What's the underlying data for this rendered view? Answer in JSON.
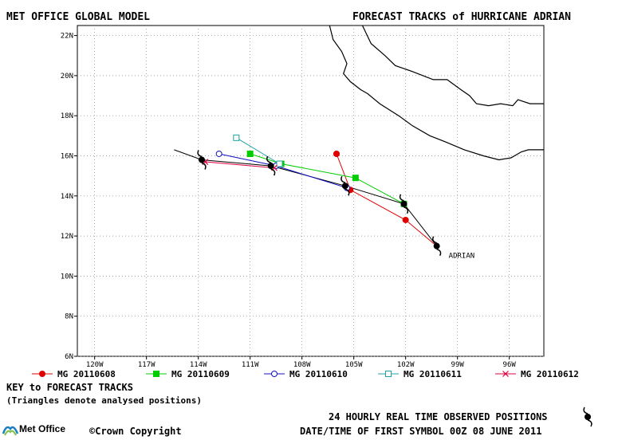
{
  "header": {
    "title_left": "MET OFFICE GLOBAL MODEL",
    "title_right": "FORECAST TRACKS of HURRICANE ADRIAN"
  },
  "map": {
    "lon_range": [
      -121,
      -94
    ],
    "lat_range": [
      6,
      22.5
    ],
    "x_ticks": [
      "120W",
      "117W",
      "114W",
      "111W",
      "108W",
      "105W",
      "102W",
      "99W",
      "96W"
    ],
    "y_ticks": [
      "6N",
      "8N",
      "10N",
      "12N",
      "14N",
      "16N",
      "18N",
      "20N",
      "22N"
    ],
    "gridlines": "dotted",
    "storm_label": "ADRIAN",
    "coastline": [
      [
        -106.4,
        22.5
      ],
      [
        -106.2,
        21.8
      ],
      [
        -105.7,
        21.2
      ],
      [
        -105.4,
        20.6
      ],
      [
        -105.6,
        20.1
      ],
      [
        -105.2,
        19.7
      ],
      [
        -104.6,
        19.3
      ],
      [
        -104.2,
        19.1
      ],
      [
        -103.5,
        18.6
      ],
      [
        -102.4,
        18.0
      ],
      [
        -101.6,
        17.5
      ],
      [
        -100.6,
        17.0
      ],
      [
        -99.7,
        16.7
      ],
      [
        -98.6,
        16.3
      ],
      [
        -97.5,
        16.0
      ],
      [
        -96.6,
        15.8
      ],
      [
        -95.9,
        15.9
      ],
      [
        -95.3,
        16.2
      ],
      [
        -94.9,
        16.3
      ],
      [
        -94,
        16.3
      ]
    ],
    "coastline_top_right": [
      [
        -104.5,
        22.5
      ],
      [
        -104.0,
        21.6
      ],
      [
        -103.2,
        21.0
      ],
      [
        -102.6,
        20.5
      ],
      [
        -101.6,
        20.2
      ],
      [
        -100.4,
        19.8
      ],
      [
        -99.6,
        19.8
      ],
      [
        -98.8,
        19.3
      ],
      [
        -98.3,
        19.0
      ],
      [
        -97.9,
        18.6
      ],
      [
        -97.2,
        18.5
      ],
      [
        -96.5,
        18.6
      ],
      [
        -95.8,
        18.5
      ],
      [
        -95.5,
        18.8
      ],
      [
        -94.8,
        18.6
      ],
      [
        -94,
        18.6
      ]
    ],
    "observed_track": [
      [
        -115.4,
        16.3
      ],
      [
        -113.8,
        15.8
      ],
      [
        -109.8,
        15.5
      ],
      [
        -105.5,
        14.5
      ],
      [
        -102.1,
        13.6
      ],
      [
        -100.2,
        11.5
      ]
    ],
    "observed_symbols": [
      [
        -113.8,
        15.8
      ],
      [
        -109.8,
        15.5
      ],
      [
        -105.5,
        14.5
      ],
      [
        -102.1,
        13.6
      ],
      [
        -100.2,
        11.5
      ]
    ]
  },
  "chart_data": {
    "type": "line",
    "title": "FORECAST TRACKS of HURRICANE ADRIAN",
    "xlabel": "",
    "ylabel": "",
    "xlim": [
      -121,
      -94
    ],
    "ylim": [
      6,
      22.5
    ],
    "series": [
      {
        "name": "MG 20110608",
        "color": "#e00000",
        "marker": "filled-circle",
        "points": [
          [
            -100.2,
            11.5
          ],
          [
            -102.0,
            12.8
          ],
          [
            -105.2,
            14.3
          ],
          [
            -106.0,
            16.1
          ]
        ]
      },
      {
        "name": "MG 20110609",
        "color": "#00cc00",
        "marker": "filled-square",
        "points": [
          [
            -102.1,
            13.6
          ],
          [
            -104.9,
            14.9
          ],
          [
            -109.2,
            15.6
          ],
          [
            -111.0,
            16.1
          ]
        ]
      },
      {
        "name": "MG 20110610",
        "color": "#1010c0",
        "marker": "open-circle",
        "points": [
          [
            -105.4,
            14.4
          ],
          [
            -109.5,
            15.5
          ],
          [
            -112.8,
            16.1
          ]
        ]
      },
      {
        "name": "MG 20110611",
        "color": "#20a0a0",
        "marker": "open-square",
        "points": [
          [
            -109.3,
            15.6
          ],
          [
            -111.8,
            16.9
          ]
        ]
      },
      {
        "name": "MG 20110612",
        "color": "#e00040",
        "marker": "cross",
        "points": [
          [
            -109.6,
            15.4
          ],
          [
            -113.6,
            15.7
          ]
        ]
      }
    ]
  },
  "legend": {
    "items": [
      {
        "label": "MG 20110608",
        "color": "#e00000",
        "marker": "filled-circle"
      },
      {
        "label": "MG 20110609",
        "color": "#00cc00",
        "marker": "filled-square"
      },
      {
        "label": "MG 20110610",
        "color": "#1010c0",
        "marker": "open-circle"
      },
      {
        "label": "MG 20110611",
        "color": "#20a0a0",
        "marker": "open-square"
      },
      {
        "label": "MG 20110612",
        "color": "#e00040",
        "marker": "cross"
      }
    ]
  },
  "footer": {
    "key_title": "KEY to FORECAST TRACKS",
    "key_note": "(Triangles denote analysed positions)",
    "observed_label": "24 HOURLY REAL TIME OBSERVED POSITIONS",
    "date_label": "DATE/TIME OF FIRST SYMBOL 00Z 08 JUNE 2011",
    "copyright": "©Crown Copyright",
    "logo_text": "Met Office"
  }
}
